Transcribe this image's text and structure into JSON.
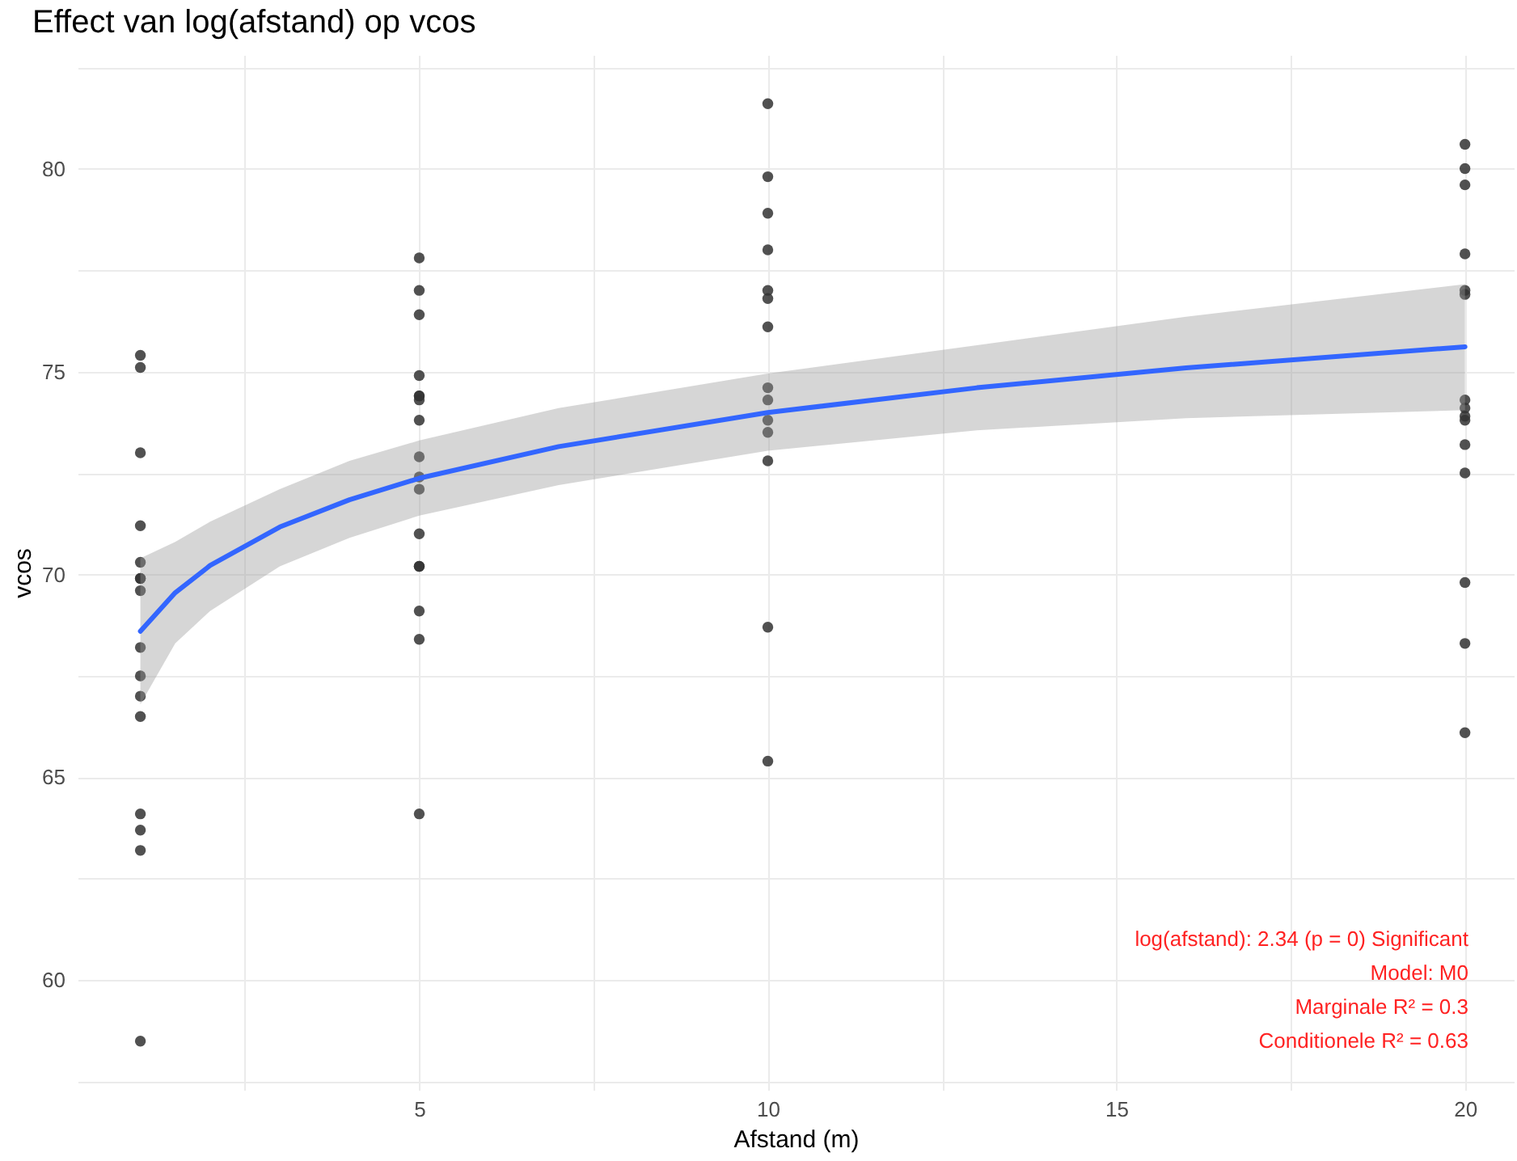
{
  "chart_data": {
    "type": "scatter",
    "title": "Effect van log(afstand) op vcos",
    "xlabel": "Afstand (m)",
    "ylabel": "vcos",
    "xlim": [
      0.1,
      20.7
    ],
    "ylim": [
      57.3,
      82.8
    ],
    "xticks": [
      {
        "value": 2.5,
        "label": null
      },
      5,
      {
        "value": 7.5,
        "label": null
      },
      10,
      {
        "value": 12.5,
        "label": null
      },
      15,
      {
        "value": 17.5,
        "label": null
      },
      20
    ],
    "yticks": [
      {
        "value": 57.5,
        "label": null
      },
      60,
      {
        "value": 62.5,
        "label": null
      },
      65,
      {
        "value": 67.5,
        "label": null
      },
      70,
      {
        "value": 72.5,
        "label": null
      },
      75,
      {
        "value": 77.5,
        "label": null
      },
      80,
      {
        "value": 82.5,
        "label": null
      }
    ],
    "grid": true,
    "annotations": [
      "log(afstand): 2.34 (p = 0) Significant",
      "Model: M0",
      "Marginale R² = 0.3",
      "Conditionele R² = 0.63"
    ],
    "series": [
      {
        "marker": "circle",
        "color": "#333333",
        "x": [
          1,
          1,
          1,
          1,
          1,
          1,
          1,
          1,
          1,
          1,
          1,
          1,
          1,
          1,
          1,
          1,
          5,
          5,
          5,
          5,
          5,
          5,
          5,
          5,
          5,
          5,
          5,
          5,
          5,
          5,
          5,
          5,
          5,
          10,
          10,
          10,
          10,
          10,
          10,
          10,
          10,
          10,
          10,
          10,
          10,
          10,
          10,
          20,
          20,
          20,
          20,
          20,
          20,
          20,
          20,
          20,
          20,
          20,
          20,
          20,
          20,
          20
        ],
        "values": [
          75.4,
          75.1,
          73.0,
          71.2,
          70.3,
          69.9,
          69.9,
          69.6,
          68.2,
          67.5,
          67.0,
          66.5,
          64.1,
          63.7,
          63.2,
          58.5,
          77.8,
          77.0,
          76.4,
          74.9,
          74.4,
          74.4,
          74.3,
          73.8,
          72.9,
          72.4,
          72.1,
          71.0,
          70.2,
          70.2,
          69.1,
          68.4,
          64.1,
          81.6,
          79.8,
          78.9,
          78.0,
          77.0,
          76.8,
          76.1,
          74.6,
          74.3,
          73.8,
          73.5,
          72.8,
          68.7,
          65.4,
          80.6,
          80.0,
          79.6,
          77.9,
          77.0,
          76.9,
          74.3,
          74.1,
          73.9,
          73.8,
          73.2,
          72.5,
          69.8,
          68.3,
          66.1
        ]
      },
      {
        "type": "line",
        "color": "#3366ff",
        "x": [
          1,
          1.5,
          2,
          3,
          4,
          5,
          7,
          10,
          13,
          16,
          20
        ],
        "values": [
          68.6,
          69.55,
          70.22,
          71.17,
          71.84,
          72.37,
          73.15,
          73.99,
          74.6,
          75.09,
          75.61
        ],
        "lower": [
          66.8,
          68.3,
          69.1,
          70.2,
          70.9,
          71.45,
          72.2,
          73.05,
          73.55,
          73.85,
          74.05
        ],
        "upper": [
          70.4,
          70.8,
          71.3,
          72.1,
          72.8,
          73.3,
          74.1,
          74.95,
          75.65,
          76.35,
          77.15
        ]
      }
    ]
  }
}
